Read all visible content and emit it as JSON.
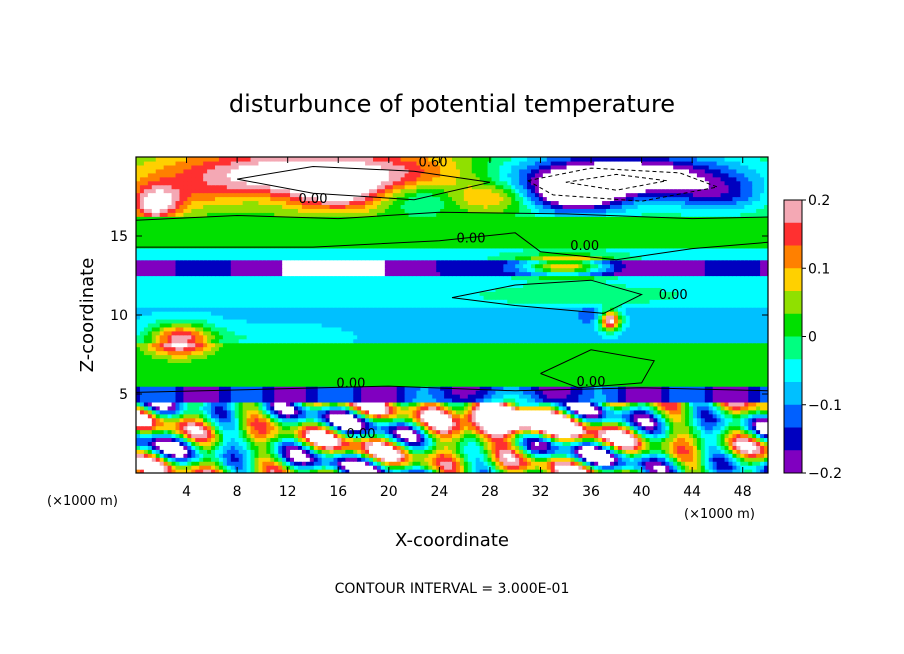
{
  "chart_data": {
    "type": "heatmap",
    "title": "disturbunce of potential temperature",
    "xlabel": "X-coordinate",
    "ylabel": "Z-coordinate",
    "x_unit": "(×1000 m)",
    "z_unit": "(×1000 m)",
    "xlim": [
      0,
      50
    ],
    "ylim": [
      0,
      20
    ],
    "x_ticks": [
      "4",
      "8",
      "12",
      "16",
      "20",
      "24",
      "28",
      "32",
      "36",
      "40",
      "44",
      "48"
    ],
    "y_ticks": [
      "5",
      "10",
      "15"
    ],
    "colorbar": {
      "range": [
        -0.2,
        0.2
      ],
      "tick_labels": [
        "0.2",
        "0.1",
        "0",
        "−0.1",
        "−0.2"
      ],
      "colors": [
        "#f4a8b4",
        "#ff3030",
        "#ff8000",
        "#ffd000",
        "#90e000",
        "#00e000",
        "#00ff80",
        "#00ffff",
        "#00c0ff",
        "#0060ff",
        "#0000c0",
        "#8000c0"
      ]
    },
    "contour_labels": [
      "0.60",
      "0.00",
      "0.00",
      "0.00",
      "0.00",
      "0.00",
      "0.00",
      "0.00"
    ],
    "contour_interval_text": "CONTOUR INTERVAL = 3.000E-01"
  }
}
